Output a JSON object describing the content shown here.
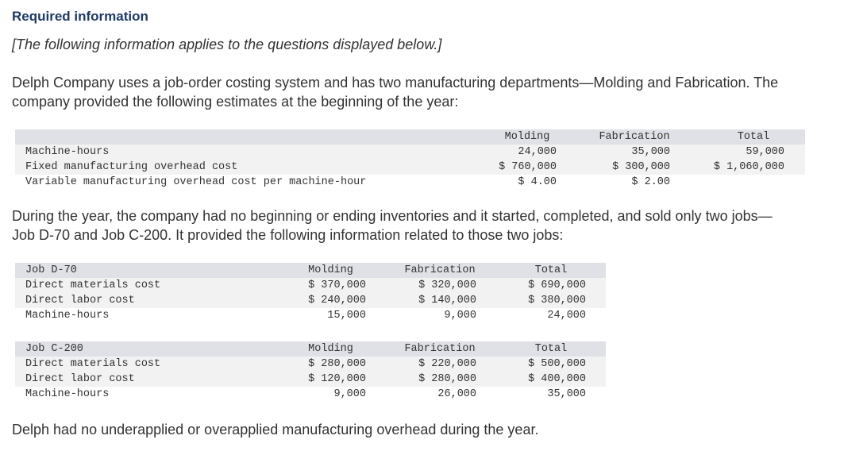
{
  "header": {
    "title": "Required information",
    "note": "[The following information applies to the questions displayed below.]"
  },
  "intro": {
    "line1": "Delph Company uses a job-order costing system and has two manufacturing departments—Molding and Fabrication. The",
    "line2": "company provided the following estimates at the beginning of the year:"
  },
  "estimates": {
    "columns": [
      "Molding",
      "Fabrication",
      "Total"
    ],
    "rows": [
      {
        "label": "Machine-hours",
        "molding": "24,000",
        "fabrication": "35,000",
        "total": "59,000"
      },
      {
        "label": "Fixed manufacturing overhead cost",
        "molding": "$ 760,000",
        "fabrication": "$ 300,000",
        "total": "$ 1,060,000"
      },
      {
        "label": "Variable manufacturing overhead cost per machine-hour",
        "molding": "$ 4.00",
        "fabrication": "$ 2.00",
        "total": ""
      }
    ]
  },
  "middle": {
    "line1": "During the year, the company had no beginning or ending inventories and it started, completed, and sold only two jobs—",
    "line2": "Job D-70 and Job C-200. It provided the following information related to those two jobs:"
  },
  "job_d70": {
    "title": "Job D-70",
    "columns": [
      "Molding",
      "Fabrication",
      "Total"
    ],
    "rows": [
      {
        "label": "Direct materials cost",
        "molding": "$ 370,000",
        "fabrication": "$ 320,000",
        "total": "$ 690,000"
      },
      {
        "label": "Direct labor cost",
        "molding": "$ 240,000",
        "fabrication": "$ 140,000",
        "total": "$ 380,000"
      },
      {
        "label": "Machine-hours",
        "molding": "15,000",
        "fabrication": "9,000",
        "total": "24,000"
      }
    ]
  },
  "job_c200": {
    "title": "Job C-200",
    "columns": [
      "Molding",
      "Fabrication",
      "Total"
    ],
    "rows": [
      {
        "label": "Direct materials cost",
        "molding": "$ 280,000",
        "fabrication": "$ 220,000",
        "total": "$ 500,000"
      },
      {
        "label": "Direct labor cost",
        "molding": "$ 120,000",
        "fabrication": "$ 280,000",
        "total": "$ 400,000"
      },
      {
        "label": "Machine-hours",
        "molding": "9,000",
        "fabrication": "26,000",
        "total": "35,000"
      }
    ]
  },
  "footer": {
    "text": "Delph had no underapplied or overapplied manufacturing overhead during the year."
  }
}
